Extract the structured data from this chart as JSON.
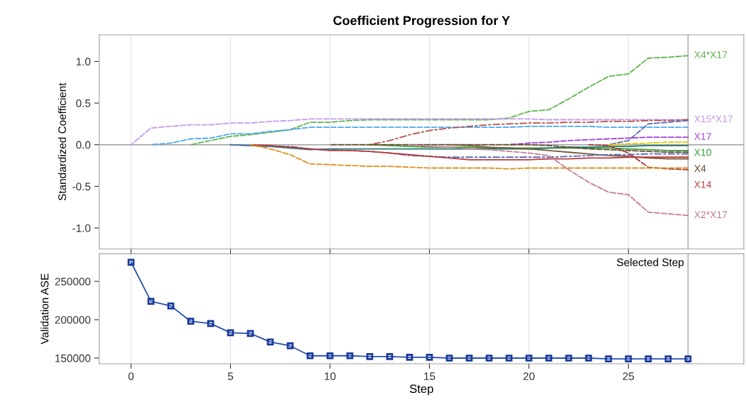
{
  "chart_data": [
    {
      "type": "line",
      "title": "Coefficient Progression for Y",
      "ylabel": "Standardized Coefficient",
      "x": [
        0,
        1,
        2,
        3,
        4,
        5,
        6,
        7,
        8,
        9,
        10,
        11,
        12,
        13,
        14,
        15,
        16,
        17,
        18,
        19,
        20,
        21,
        22,
        23,
        24,
        25,
        26,
        27,
        28
      ],
      "xlim": [
        -1.6,
        30.8
      ],
      "xticks": [
        0,
        5,
        10,
        15,
        20,
        25
      ],
      "ylim": [
        -1.25,
        1.32
      ],
      "yticks": [
        {
          "value": 1.0,
          "label": "1.0"
        },
        {
          "value": 0.5,
          "label": "0.5"
        },
        {
          "value": 0.0,
          "label": "0.0"
        },
        {
          "value": -0.5,
          "label": "-0.5"
        },
        {
          "value": -1.0,
          "label": "-1.0"
        }
      ],
      "tick_labels": "y",
      "grid": "x",
      "legend": false,
      "ref_lines": [
        {
          "axis": "x",
          "value": 28,
          "color": "#a0a0a0"
        },
        {
          "axis": "y",
          "value": 0,
          "color": "#a0a0a0"
        }
      ],
      "series": [
        {
          "name": "X4*X17",
          "color": "#5db54a",
          "line_style": "dashed",
          "values": [
            null,
            null,
            null,
            0,
            0.05,
            0.1,
            0.12,
            0.15,
            0.18,
            0.27,
            0.27,
            0.29,
            0.3,
            0.3,
            0.3,
            0.3,
            0.3,
            0.3,
            0.3,
            0.32,
            0.4,
            0.42,
            0.55,
            0.69,
            0.82,
            0.85,
            1.04,
            1.05,
            1.07
          ]
        },
        {
          "name": "X15*X17",
          "color": "#c39bf0",
          "line_style": "dashed",
          "values": [
            0,
            0.2,
            0.22,
            0.24,
            0.24,
            0.26,
            0.26,
            0.28,
            0.29,
            0.31,
            0.31,
            0.31,
            0.31,
            0.31,
            0.31,
            0.31,
            0.31,
            0.31,
            0.31,
            0.31,
            0.31,
            0.3,
            0.3,
            0.3,
            0.3,
            0.3,
            0.3,
            0.3,
            0.3
          ]
        },
        {
          "color": "#4aa8f0",
          "line_style": "dashed",
          "values": [
            null,
            0,
            0.02,
            0.07,
            0.08,
            0.13,
            0.13,
            0.16,
            0.18,
            0.21,
            0.21,
            0.21,
            0.21,
            0.21,
            0.21,
            0.21,
            0.21,
            0.21,
            0.21,
            0.21,
            0.22,
            0.22,
            0.22,
            0.22,
            0.21,
            0.21,
            0.21,
            0.21,
            0.21
          ]
        },
        {
          "color": "#b5544a",
          "line_style": "dashdot",
          "values": [
            null,
            null,
            null,
            null,
            null,
            null,
            null,
            null,
            null,
            null,
            null,
            null,
            0,
            0.05,
            0.12,
            0.17,
            0.2,
            0.22,
            0.24,
            0.25,
            0.26,
            0.26,
            0.27,
            0.27,
            0.28,
            0.28,
            0.29,
            0.29,
            0.3
          ]
        },
        {
          "color": "#5a6ab5",
          "line_style": "dashed",
          "values": [
            null,
            null,
            null,
            null,
            null,
            null,
            null,
            null,
            null,
            null,
            null,
            null,
            null,
            null,
            null,
            null,
            null,
            null,
            null,
            null,
            null,
            null,
            null,
            null,
            0,
            0.05,
            0.25,
            0.27,
            0.29
          ]
        },
        {
          "name": "X17",
          "color": "#a040e0",
          "line_style": "dashed",
          "values": [
            null,
            null,
            null,
            null,
            null,
            null,
            null,
            null,
            null,
            null,
            null,
            null,
            null,
            null,
            null,
            null,
            null,
            null,
            null,
            0,
            0.02,
            0.03,
            0.05,
            0.06,
            0.07,
            0.08,
            0.09,
            0.09,
            0.09
          ]
        },
        {
          "color": "#e6c800",
          "line_style": "dashed",
          "values": [
            null,
            null,
            null,
            null,
            null,
            null,
            null,
            null,
            null,
            null,
            null,
            null,
            null,
            null,
            null,
            null,
            null,
            null,
            null,
            null,
            null,
            null,
            null,
            null,
            0,
            0.01,
            0.02,
            0.03,
            0.03
          ]
        },
        {
          "name": "X10",
          "color": "#3a9a3a",
          "line_style": "solid",
          "values": [
            null,
            null,
            null,
            null,
            null,
            null,
            null,
            null,
            null,
            null,
            null,
            null,
            0,
            -0.01,
            -0.02,
            -0.03,
            -0.03,
            -0.03,
            -0.04,
            -0.04,
            -0.04,
            -0.04,
            -0.04,
            -0.04,
            -0.04,
            -0.05,
            -0.06,
            -0.07,
            -0.07
          ]
        },
        {
          "color": "#1f7a6e",
          "line_style": "solid",
          "values": [
            null,
            null,
            null,
            null,
            null,
            0,
            -0.01,
            -0.02,
            -0.04,
            -0.06,
            -0.05,
            -0.05,
            -0.05,
            -0.05,
            -0.05,
            -0.05,
            -0.05,
            -0.05,
            -0.05,
            -0.05,
            -0.05,
            -0.04,
            -0.03,
            -0.03,
            -0.02,
            -0.02,
            -0.01,
            -0.01,
            -0.01
          ]
        },
        {
          "name": "X4",
          "color": "#6b4a2a",
          "line_style": "dashed",
          "values": [
            null,
            null,
            null,
            null,
            null,
            null,
            null,
            null,
            null,
            null,
            0,
            0,
            0,
            0,
            0,
            0,
            0,
            0,
            0,
            0,
            0,
            -0.01,
            -0.03,
            -0.05,
            -0.06,
            -0.07,
            -0.08,
            -0.09,
            -0.09
          ]
        },
        {
          "color": "#7a5a3a",
          "line_style": "solid",
          "values": [
            null,
            null,
            null,
            null,
            null,
            null,
            null,
            null,
            null,
            null,
            null,
            null,
            null,
            null,
            null,
            null,
            0,
            -0.01,
            -0.03,
            -0.04,
            -0.05,
            -0.07,
            -0.09,
            -0.11,
            -0.13,
            -0.14,
            -0.16,
            -0.17,
            -0.17
          ]
        },
        {
          "color": "#5a6ab5",
          "line_style": "dashdot",
          "values": [
            null,
            null,
            null,
            null,
            null,
            0,
            -0.01,
            -0.02,
            -0.02,
            -0.05,
            -0.06,
            -0.07,
            -0.08,
            -0.1,
            -0.13,
            -0.14,
            -0.15,
            -0.15,
            -0.15,
            -0.15,
            -0.15,
            -0.15,
            -0.14,
            -0.13,
            -0.12,
            -0.12,
            -0.11,
            -0.11,
            -0.11
          ]
        },
        {
          "name": "X14",
          "color": "#b83c3c",
          "line_style": "solid",
          "values": [
            null,
            null,
            null,
            null,
            null,
            null,
            0,
            -0.01,
            -0.03,
            -0.05,
            -0.07,
            -0.07,
            -0.08,
            -0.1,
            -0.12,
            -0.14,
            -0.16,
            -0.18,
            -0.18,
            -0.18,
            -0.18,
            -0.17,
            -0.17,
            -0.16,
            -0.16,
            -0.15,
            -0.15,
            -0.15,
            -0.15
          ]
        },
        {
          "color": "#a83c3c",
          "line_style": "dashed",
          "values": [
            null,
            null,
            null,
            null,
            null,
            null,
            null,
            null,
            null,
            null,
            null,
            null,
            null,
            null,
            null,
            null,
            null,
            null,
            null,
            null,
            null,
            null,
            null,
            0,
            -0.01,
            -0.1,
            -0.27,
            -0.29,
            -0.3
          ]
        },
        {
          "color": "#e0901a",
          "line_style": "dashed",
          "values": [
            null,
            null,
            null,
            null,
            null,
            null,
            0,
            -0.05,
            -0.12,
            -0.23,
            -0.24,
            -0.25,
            -0.26,
            -0.26,
            -0.27,
            -0.28,
            -0.28,
            -0.28,
            -0.28,
            -0.29,
            -0.28,
            -0.28,
            -0.28,
            -0.28,
            -0.28,
            -0.28,
            -0.28,
            -0.28,
            -0.28
          ]
        },
        {
          "name": "X2*X17",
          "color": "#c77a9a",
          "line_style": "dashed",
          "values": [
            null,
            null,
            null,
            null,
            null,
            null,
            null,
            null,
            null,
            null,
            null,
            null,
            null,
            null,
            0,
            -0.02,
            -0.03,
            -0.05,
            -0.06,
            -0.08,
            -0.1,
            -0.13,
            -0.3,
            -0.45,
            -0.57,
            -0.6,
            -0.81,
            -0.83,
            -0.85
          ]
        }
      ]
    },
    {
      "type": "line",
      "xlabel": "Step",
      "ylabel": "Validation ASE",
      "x": [
        0,
        1,
        2,
        3,
        4,
        5,
        6,
        7,
        8,
        9,
        10,
        11,
        12,
        13,
        14,
        15,
        16,
        17,
        18,
        19,
        20,
        21,
        22,
        23,
        24,
        25,
        26,
        27,
        28
      ],
      "xlim": [
        -1.6,
        30.8
      ],
      "xticks": [
        0,
        5,
        10,
        15,
        20,
        25
      ],
      "ylim": [
        142600,
        286000
      ],
      "yticks": [
        150000,
        200000,
        250000
      ],
      "grid": "x",
      "legend": false,
      "marker": "square",
      "line_style": "solid",
      "ref_lines": [
        {
          "axis": "x",
          "value": 28,
          "label": "Selected Step",
          "color": "#a0a0a0"
        }
      ],
      "series": [
        {
          "color": "#2a4fb0",
          "values": [
            275000,
            224000,
            218000,
            198000,
            195000,
            183000,
            182000,
            171000,
            166000,
            153000,
            153000,
            153000,
            152000,
            152000,
            151000,
            151000,
            150000,
            150000,
            150000,
            150000,
            150000,
            150000,
            150000,
            150000,
            149000,
            149000,
            149000,
            149000,
            149000
          ]
        }
      ]
    }
  ]
}
